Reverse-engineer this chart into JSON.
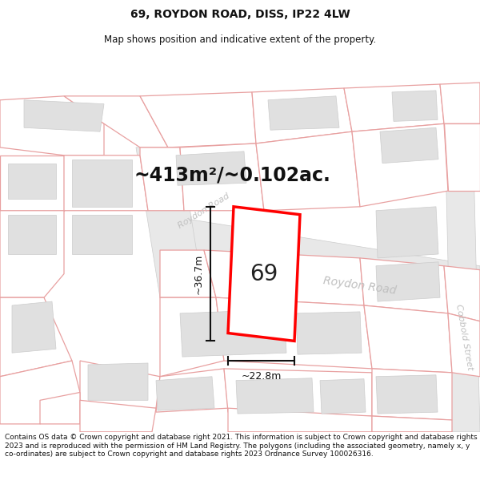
{
  "title_line1": "69, ROYDON ROAD, DISS, IP22 4LW",
  "title_line2": "Map shows position and indicative extent of the property.",
  "area_text": "~413m²/~0.102ac.",
  "width_text": "~22.8m",
  "height_text": "~36.7m",
  "number_text": "69",
  "footer_text": "Contains OS data © Crown copyright and database right 2021. This information is subject to Crown copyright and database rights 2023 and is reproduced with the permission of HM Land Registry. The polygons (including the associated geometry, namely x, y co-ordinates) are subject to Crown copyright and database rights 2023 Ordnance Survey 100026316.",
  "bg_color": "#ffffff",
  "parcel_outline": "#e8a0a0",
  "parcel_fill": "#ffffff",
  "building_fill": "#e0e0e0",
  "building_outline": "#cccccc",
  "road_fill": "#e8e8e8",
  "road_outline": "#cccccc",
  "road_label_color": "#c0c0c0",
  "plot_outline": "#ff0000",
  "plot_fill": "#ffffff",
  "dimension_color": "#111111",
  "number_color": "#222222",
  "area_color": "#111111",
  "footer_color": "#111111",
  "title_color": "#111111",
  "title_fontsize": 10,
  "subtitle_fontsize": 8.5,
  "area_fontsize": 17,
  "dim_fontsize": 9,
  "number_fontsize": 20,
  "road_label_fontsize": 10,
  "footer_fontsize": 6.5
}
